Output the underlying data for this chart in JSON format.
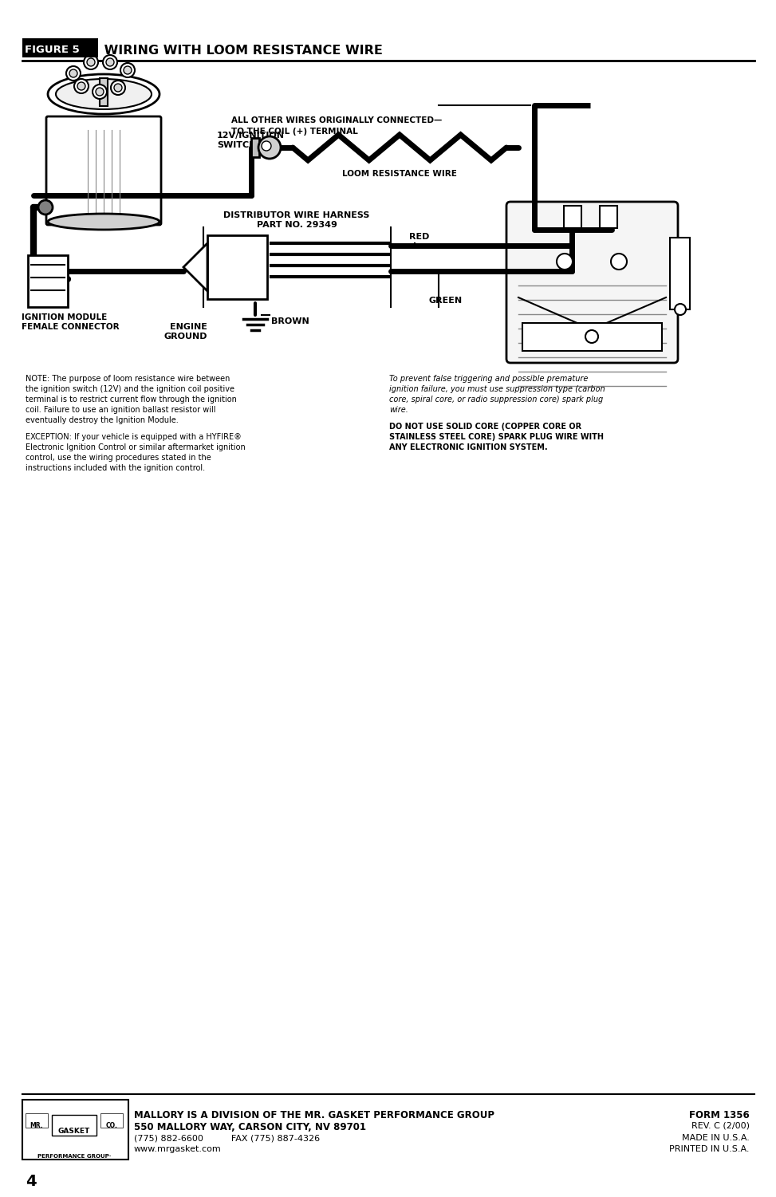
{
  "bg_color": "#ffffff",
  "page_width": 9.54,
  "page_height": 14.75,
  "title_box_text": "FIGURE 5",
  "title_text": " WIRING WITH LOOM RESISTANCE WIRE",
  "page_number": "4",
  "label_ignition_switch": "12V/IGNITION\nSWITCH",
  "label_dist_harness": "DISTRIBUTOR WIRE HARNESS\nPART NO. 29349",
  "label_ignition_module": "IGNITION MODULE\nFEMALE CONNECTOR",
  "label_all_other_wires": "ALL OTHER WIRES ORIGINALLY CONNECTED—\nTO THE COIL (+) TERMINAL",
  "label_loom_resistance": "LOOM RESISTANCE WIRE",
  "label_red": "RED",
  "label_green": "GREEN",
  "label_brown": "BROWN",
  "label_engine_ground": "ENGINE\nGROUND",
  "note_left_1": "NOTE: The purpose of loom resistance wire between the ignition switch (12V) and the ignition coil positive terminal is to restrict current flow through the ignition coil. Failure to use an ignition ballast resistor will eventually destroy the Ignition Module.",
  "note_left_2": "EXCEPTION: If your vehicle is equipped with a HYFIRE® Electronic Ignition Control or similar aftermarket ignition control, use the wiring procedures stated in the instructions included with the ignition control.",
  "note_right_italic": "To prevent false triggering and possible premature ignition failure, you must use suppression type (carbon core, spiral core, or radio suppression core) spark plug wire.",
  "note_right_bold": "DO NOT USE SOLID CORE (COPPER CORE OR STAINLESS STEEL CORE) SPARK PLUG WIRE WITH ANY ELECTRONIC IGNITION SYSTEM.",
  "footer_line1": "MALLORY IS A DIVISION OF THE MR. GASKET PERFORMANCE GROUP",
  "footer_line2": "550 MALLORY WAY, CARSON CITY, NV 89701",
  "footer_line3": "(775) 882-6600",
  "footer_line3b": "FAX (775) 887-4326",
  "footer_line4": "www.mrgasket.com",
  "footer_right1": "FORM 1356",
  "footer_right2": "REV. C (2/00)",
  "footer_right3": "MADE IN U.S.A.",
  "footer_right4": "PRINTED IN U.S.A."
}
